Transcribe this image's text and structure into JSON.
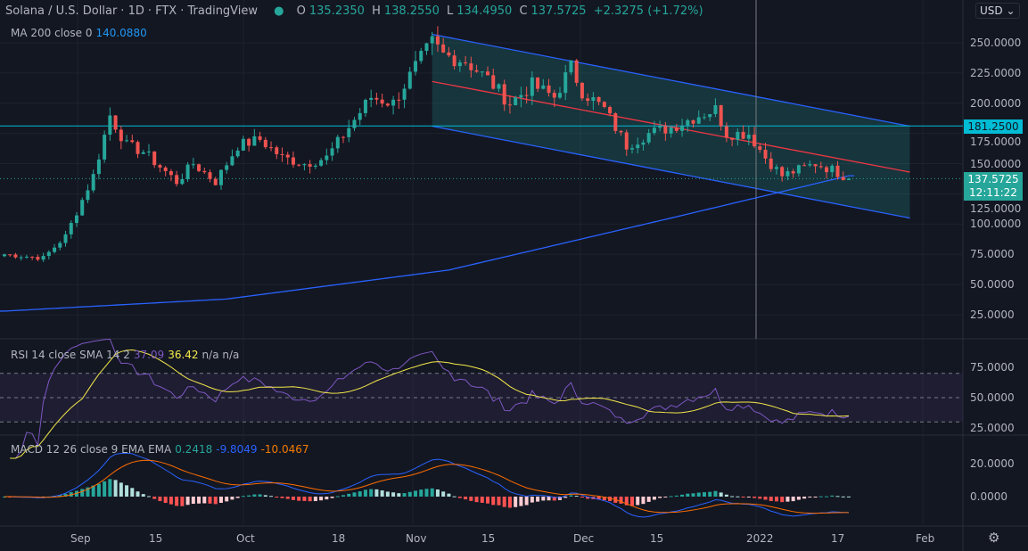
{
  "header": {
    "symbol": "Solana / U.S. Dollar",
    "interval": "1D",
    "exchange": "FTX",
    "source": "TradingView",
    "open_label": "O",
    "open": "135.2350",
    "high_label": "H",
    "high": "138.2550",
    "low_label": "L",
    "low": "134.4950",
    "close_label": "C",
    "close": "137.5725",
    "change": "+2.3275 (+1.72%)"
  },
  "ma": {
    "label": "MA 200 close 0",
    "value": "140.0880"
  },
  "currency": "USD",
  "rsi": {
    "label": "RSI 14 close SMA 14 2",
    "value1": "37.09",
    "value2": "36.42",
    "extra": "n/a n/a",
    "ticks": [
      "75.0000",
      "50.0000",
      "25.0000"
    ]
  },
  "macd": {
    "label": "MACD 12 26 close 9 EMA EMA",
    "hist": "0.2418",
    "macd": "-9.8049",
    "signal": "-10.0467",
    "ticks": [
      "20.0000",
      "0.0000"
    ]
  },
  "price_axis": {
    "ticks": [
      "250.0000",
      "225.0000",
      "200.0000",
      "175.0000",
      "150.0000",
      "125.0000",
      "100.0000",
      "75.0000",
      "50.0000",
      "25.0000"
    ],
    "hline_label": "181.2500",
    "last_price": "137.5725",
    "countdown": "12:11:22"
  },
  "time_axis": [
    "Sep",
    "15",
    "Oct",
    "18",
    "Nov",
    "15",
    "Dec",
    "15",
    "2022",
    "17",
    "Feb"
  ],
  "colors": {
    "up": "#26a69a",
    "down": "#ef5350",
    "ma": "#2962ff",
    "channel": "#2962ff",
    "mid": "#f23645",
    "hline": "#00bcd4"
  },
  "chart_data": {
    "type": "candlestick",
    "start_date": "2021-08-21",
    "close_keypoints": [
      [
        0,
        75
      ],
      [
        7,
        72
      ],
      [
        11,
        90
      ],
      [
        16,
        140
      ],
      [
        19,
        190
      ],
      [
        22,
        165
      ],
      [
        25,
        160
      ],
      [
        31,
        135
      ],
      [
        34,
        150
      ],
      [
        38,
        135
      ],
      [
        42,
        165
      ],
      [
        46,
        170
      ],
      [
        50,
        155
      ],
      [
        54,
        150
      ],
      [
        58,
        155
      ],
      [
        62,
        180
      ],
      [
        66,
        205
      ],
      [
        70,
        200
      ],
      [
        74,
        230
      ],
      [
        77,
        250
      ],
      [
        79,
        240
      ],
      [
        83,
        235
      ],
      [
        87,
        220
      ],
      [
        91,
        200
      ],
      [
        95,
        215
      ],
      [
        99,
        205
      ],
      [
        102,
        230
      ],
      [
        104,
        210
      ],
      [
        108,
        195
      ],
      [
        112,
        165
      ],
      [
        116,
        175
      ],
      [
        120,
        180
      ],
      [
        125,
        190
      ],
      [
        128,
        195
      ],
      [
        130,
        175
      ],
      [
        134,
        175
      ],
      [
        137,
        155
      ],
      [
        140,
        140
      ],
      [
        143,
        145
      ],
      [
        146,
        150
      ],
      [
        149,
        145
      ],
      [
        152,
        137.57
      ]
    ],
    "ma200": [
      [
        0,
        28
      ],
      [
        40,
        38
      ],
      [
        80,
        62
      ],
      [
        120,
        105
      ],
      [
        152,
        140
      ]
    ],
    "channel_upper": [
      [
        77,
        257
      ],
      [
        163,
        181
      ]
    ],
    "channel_lower": [
      [
        77,
        181
      ],
      [
        163,
        105
      ]
    ],
    "channel_mid": [
      [
        77,
        218
      ],
      [
        163,
        143
      ]
    ],
    "hline": 181.25,
    "ylim": [
      0,
      280
    ]
  }
}
